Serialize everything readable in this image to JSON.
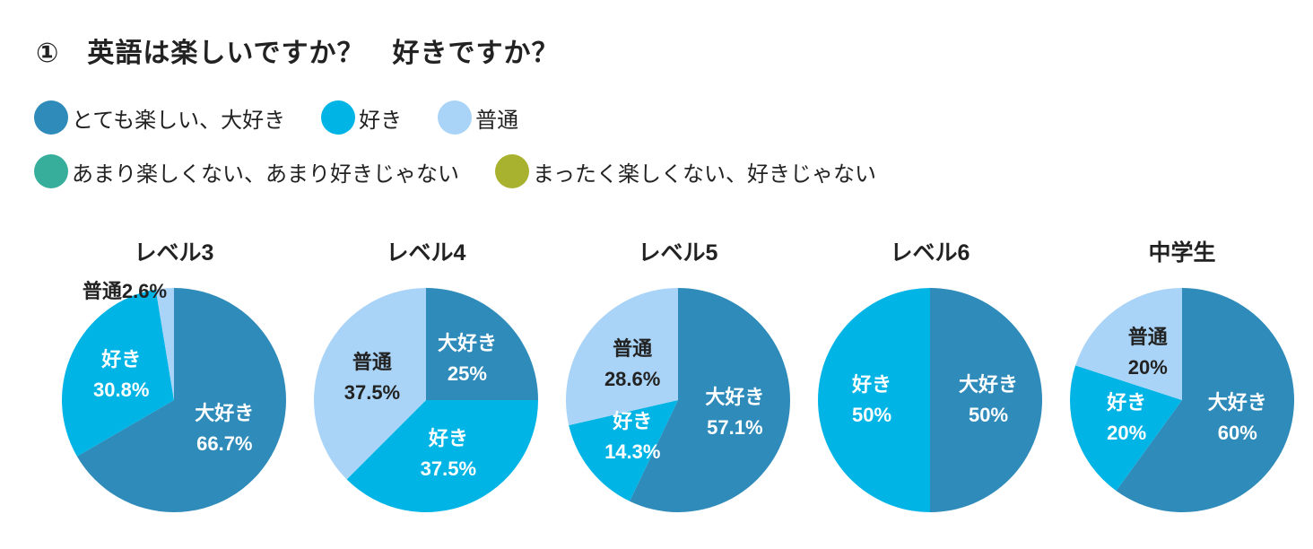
{
  "title": "①　英語は楽しいですか？　好きですか？",
  "legend": [
    {
      "label": "とても楽しい、大好き",
      "color": "#2E8BBA"
    },
    {
      "label": "好き",
      "color": "#00B5E6"
    },
    {
      "label": "普通",
      "color": "#AAD4F7"
    },
    {
      "label": "あまり楽しくない、あまり好きじゃない",
      "color": "#36AE9B"
    },
    {
      "label": "まったく楽しくない、好きじゃない",
      "color": "#A9B22F"
    }
  ],
  "chart_data": [
    {
      "type": "pie",
      "title": "レベル3",
      "slices": [
        {
          "name": "大好き",
          "value": 66.7,
          "label": "66.7%",
          "color": "#2E8BBA"
        },
        {
          "name": "好き",
          "value": 30.8,
          "label": "30.8%",
          "color": "#00B5E6"
        },
        {
          "name": "普通",
          "value": 2.6,
          "label": "2.6%",
          "color": "#AAD4F7"
        }
      ]
    },
    {
      "type": "pie",
      "title": "レベル4",
      "slices": [
        {
          "name": "大好き",
          "value": 25,
          "label": "25%",
          "color": "#2E8BBA"
        },
        {
          "name": "好き",
          "value": 37.5,
          "label": "37.5%",
          "color": "#00B5E6"
        },
        {
          "name": "普通",
          "value": 37.5,
          "label": "37.5%",
          "color": "#AAD4F7"
        }
      ]
    },
    {
      "type": "pie",
      "title": "レベル5",
      "slices": [
        {
          "name": "大好き",
          "value": 57.1,
          "label": "57.1%",
          "color": "#2E8BBA"
        },
        {
          "name": "好き",
          "value": 14.3,
          "label": "14.3%",
          "color": "#00B5E6"
        },
        {
          "name": "普通",
          "value": 28.6,
          "label": "28.6%",
          "color": "#AAD4F7"
        }
      ]
    },
    {
      "type": "pie",
      "title": "レベル6",
      "slices": [
        {
          "name": "大好き",
          "value": 50,
          "label": "50%",
          "color": "#2E8BBA"
        },
        {
          "name": "好き",
          "value": 50,
          "label": "50%",
          "color": "#00B5E6"
        }
      ]
    },
    {
      "type": "pie",
      "title": "中学生",
      "slices": [
        {
          "name": "大好き",
          "value": 60,
          "label": "60%",
          "color": "#2E8BBA"
        },
        {
          "name": "好き",
          "value": 20,
          "label": "20%",
          "color": "#00B5E6"
        },
        {
          "name": "普通",
          "value": 20,
          "label": "20%",
          "color": "#AAD4F7"
        }
      ]
    }
  ]
}
